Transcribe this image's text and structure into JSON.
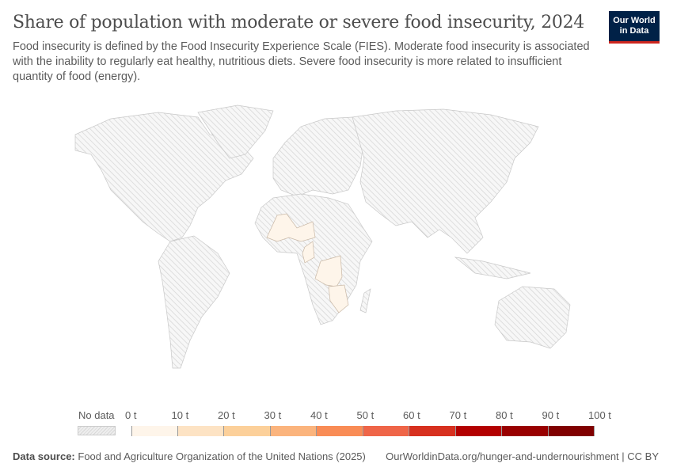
{
  "header": {
    "title": "Share of population with moderate or severe food insecurity, 2024",
    "subtitle": "Food insecurity is defined by the Food Insecurity Experience Scale (FIES). Moderate food insecurity is associated with the inability to regularly eat healthy, nutritious diets. Severe food insecurity is more related to insufficient quantity of food (energy).",
    "logo_line1": "Our World",
    "logo_line2": "in Data"
  },
  "legend": {
    "no_data_label": "No data",
    "ticks": [
      "0 t",
      "10 t",
      "20 t",
      "30 t",
      "40 t",
      "50 t",
      "60 t",
      "70 t",
      "80 t",
      "90 t",
      "100 t"
    ],
    "colors": [
      "#fef5ea",
      "#fde3c4",
      "#fcd09a",
      "#fbb47d",
      "#f98c56",
      "#ef6548",
      "#d7301f",
      "#b30000",
      "#990000",
      "#800000"
    ],
    "no_data_color": "#e6e6e6"
  },
  "footer": {
    "source_label": "Data source:",
    "source": "Food and Agriculture Organization of the United Nations (2025)",
    "url": "OurWorldinData.org/hunger-and-undernourishment | CC BY"
  }
}
